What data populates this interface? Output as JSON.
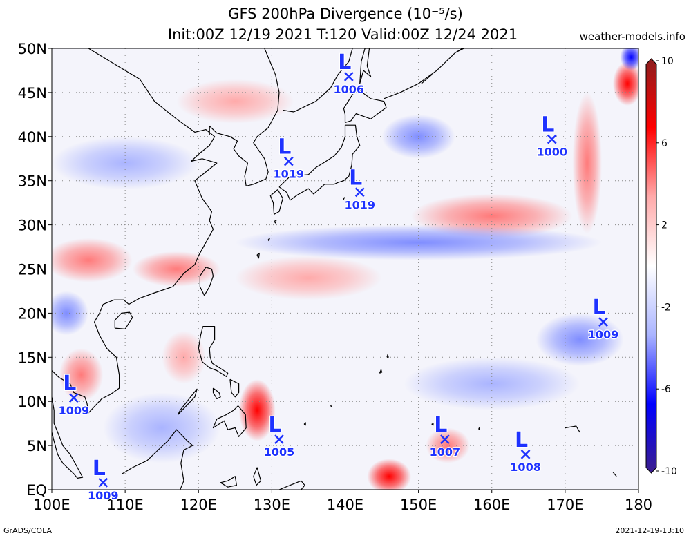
{
  "title": {
    "line1": "GFS 200hPa Divergence (10⁻⁵/s)",
    "line2": "Init:00Z 12/19 2021 T:120 Valid:00Z 12/24 2021"
  },
  "source_label": "weather-models.info",
  "footer": {
    "left": "GrADS/COLA",
    "right": "2021-12-19-13:10"
  },
  "map": {
    "lon_range": [
      100,
      180
    ],
    "lat_range": [
      0,
      50
    ],
    "lon_ticks": [
      "100E",
      "110E",
      "120E",
      "130E",
      "140E",
      "150E",
      "160E",
      "170E",
      "180"
    ],
    "lat_ticks": [
      "EQ",
      "5N",
      "10N",
      "15N",
      "20N",
      "25N",
      "30N",
      "35N",
      "40N",
      "45N",
      "50N"
    ]
  },
  "colorbar": {
    "labels": [
      "10",
      "6",
      "2",
      "-2",
      "-6",
      "-10"
    ],
    "colors": [
      "#8c1e1e",
      "#ff0000",
      "#ffaaaa",
      "#ffffff",
      "#aab4ff",
      "#0000ff",
      "#3c1e8c"
    ]
  },
  "lows": [
    {
      "label": "L",
      "pressure": "1006",
      "lon": 140.5,
      "lat": 46.8
    },
    {
      "label": "L",
      "pressure": "1019",
      "lon": 132.3,
      "lat": 37.2
    },
    {
      "label": "L",
      "pressure": "1019",
      "lon": 142.0,
      "lat": 33.7
    },
    {
      "label": "L",
      "pressure": "1000",
      "lon": 168.2,
      "lat": 39.7
    },
    {
      "label": "L",
      "pressure": "1009",
      "lon": 175.2,
      "lat": 19.0
    },
    {
      "label": "L",
      "pressure": "1009",
      "lon": 103.0,
      "lat": 10.4
    },
    {
      "label": "L",
      "pressure": "1005",
      "lon": 131.0,
      "lat": 5.7
    },
    {
      "label": "L",
      "pressure": "1007",
      "lon": 153.6,
      "lat": 5.7
    },
    {
      "label": "L",
      "pressure": "1008",
      "lon": 164.6,
      "lat": 4.0
    },
    {
      "label": "L",
      "pressure": "1009",
      "lon": 107.0,
      "lat": 0.8
    }
  ],
  "field_blobs": [
    {
      "sign": "pos",
      "lon": 128.0,
      "lat": 9.0,
      "rx": 2.5,
      "ry": 3.5,
      "strength": "strong"
    },
    {
      "sign": "pos",
      "lon": 146.0,
      "lat": 1.5,
      "rx": 3.0,
      "ry": 2.0,
      "strength": "strong"
    },
    {
      "sign": "pos",
      "lon": 154.0,
      "lat": 5.0,
      "rx": 3.0,
      "ry": 2.0,
      "strength": "medium"
    },
    {
      "sign": "pos",
      "lon": 105.0,
      "lat": 26.0,
      "rx": 6.0,
      "ry": 2.5,
      "strength": "medium"
    },
    {
      "sign": "pos",
      "lon": 117.0,
      "lat": 25.0,
      "rx": 6.0,
      "ry": 2.0,
      "strength": "medium"
    },
    {
      "sign": "pos",
      "lon": 160.0,
      "lat": 31.0,
      "rx": 11.0,
      "ry": 2.5,
      "strength": "medium"
    },
    {
      "sign": "pos",
      "lon": 173.0,
      "lat": 37.0,
      "rx": 2.0,
      "ry": 8.0,
      "strength": "medium"
    },
    {
      "sign": "pos",
      "lon": 178.5,
      "lat": 46.0,
      "rx": 2.0,
      "ry": 2.5,
      "strength": "strong"
    },
    {
      "sign": "pos",
      "lon": 104.0,
      "lat": 13.0,
      "rx": 3.0,
      "ry": 3.0,
      "strength": "medium"
    },
    {
      "sign": "pos",
      "lon": 125.0,
      "lat": 44.0,
      "rx": 8.0,
      "ry": 2.5,
      "strength": "weak"
    },
    {
      "sign": "pos",
      "lon": 118.0,
      "lat": 15.0,
      "rx": 3.0,
      "ry": 3.0,
      "strength": "weak"
    },
    {
      "sign": "pos",
      "lon": 135.0,
      "lat": 24.0,
      "rx": 10.0,
      "ry": 2.5,
      "strength": "weak"
    },
    {
      "sign": "neg",
      "lon": 150.0,
      "lat": 28.0,
      "rx": 25.0,
      "ry": 2.0,
      "strength": "medium"
    },
    {
      "sign": "neg",
      "lon": 102.0,
      "lat": 20.0,
      "rx": 3.0,
      "ry": 2.5,
      "strength": "medium"
    },
    {
      "sign": "neg",
      "lon": 110.0,
      "lat": 37.0,
      "rx": 10.0,
      "ry": 3.0,
      "strength": "weak"
    },
    {
      "sign": "neg",
      "lon": 150.0,
      "lat": 40.0,
      "rx": 5.0,
      "ry": 2.5,
      "strength": "medium"
    },
    {
      "sign": "neg",
      "lon": 172.0,
      "lat": 17.0,
      "rx": 6.0,
      "ry": 3.0,
      "strength": "medium"
    },
    {
      "sign": "neg",
      "lon": 115.0,
      "lat": 7.0,
      "rx": 8.0,
      "ry": 4.0,
      "strength": "weak"
    },
    {
      "sign": "neg",
      "lon": 160.0,
      "lat": 12.0,
      "rx": 12.0,
      "ry": 3.0,
      "strength": "weak"
    },
    {
      "sign": "neg",
      "lon": 179.0,
      "lat": 49.0,
      "rx": 1.5,
      "ry": 1.5,
      "strength": "strong"
    }
  ],
  "coastlines": [
    [
      [
        105.0,
        50.0
      ],
      [
        109.0,
        48.0
      ],
      [
        112.0,
        46.5
      ],
      [
        114.0,
        44.0
      ],
      [
        117.0,
        42.0
      ],
      [
        119.5,
        40.5
      ],
      [
        121.0,
        40.8
      ],
      [
        122.2,
        40.0
      ],
      [
        121.5,
        39.0
      ],
      [
        120.0,
        38.0
      ],
      [
        119.0,
        37.2
      ],
      [
        120.5,
        37.5
      ],
      [
        122.5,
        37.0
      ],
      [
        121.0,
        36.0
      ],
      [
        119.5,
        35.0
      ],
      [
        120.5,
        33.0
      ],
      [
        121.8,
        31.5
      ],
      [
        121.5,
        30.5
      ],
      [
        122.0,
        29.5
      ],
      [
        121.0,
        28.0
      ],
      [
        120.0,
        26.5
      ],
      [
        119.5,
        25.5
      ],
      [
        118.0,
        24.5
      ],
      [
        116.5,
        23.0
      ],
      [
        114.0,
        22.3
      ],
      [
        112.0,
        21.7
      ],
      [
        110.5,
        21.0
      ],
      [
        109.8,
        21.5
      ],
      [
        108.5,
        21.5
      ],
      [
        107.0,
        21.0
      ],
      [
        106.5,
        20.0
      ],
      [
        105.8,
        19.0
      ],
      [
        106.5,
        17.5
      ],
      [
        107.5,
        16.0
      ],
      [
        108.8,
        15.0
      ],
      [
        109.2,
        13.0
      ],
      [
        109.2,
        11.5
      ],
      [
        108.0,
        10.8
      ],
      [
        106.8,
        10.3
      ],
      [
        105.0,
        8.7
      ],
      [
        104.8,
        9.8
      ],
      [
        104.5,
        10.5
      ],
      [
        103.0,
        11.0
      ],
      [
        102.5,
        12.0
      ],
      [
        101.0,
        12.7
      ],
      [
        100.0,
        13.5
      ]
    ],
    [
      [
        100.0,
        10.5
      ],
      [
        100.3,
        9.0
      ],
      [
        100.3,
        7.5
      ],
      [
        100.8,
        6.5
      ],
      [
        101.5,
        5.0
      ],
      [
        102.5,
        4.0
      ],
      [
        103.5,
        2.5
      ],
      [
        104.2,
        1.4
      ],
      [
        103.5,
        1.3
      ],
      [
        103.0,
        1.8
      ],
      [
        101.5,
        3.0
      ],
      [
        100.8,
        4.0
      ],
      [
        100.3,
        5.5
      ],
      [
        100.0,
        6.5
      ]
    ],
    [
      [
        129.0,
        50.0
      ],
      [
        130.5,
        47.0
      ],
      [
        131.0,
        45.0
      ],
      [
        130.8,
        43.0
      ],
      [
        129.5,
        41.0
      ],
      [
        128.0,
        40.0
      ],
      [
        127.5,
        39.3
      ],
      [
        129.0,
        37.5
      ],
      [
        129.5,
        36.0
      ],
      [
        129.2,
        35.2
      ],
      [
        127.5,
        34.6
      ],
      [
        126.5,
        34.4
      ],
      [
        126.3,
        35.5
      ],
      [
        126.7,
        37.0
      ],
      [
        125.5,
        37.8
      ],
      [
        124.8,
        38.6
      ],
      [
        125.3,
        39.5
      ],
      [
        124.3,
        40.0
      ],
      [
        122.5,
        40.4
      ],
      [
        121.5,
        41.2
      ],
      [
        121.5,
        40.2
      ]
    ],
    [
      [
        130.8,
        34.0
      ],
      [
        131.5,
        33.0
      ],
      [
        131.0,
        31.5
      ],
      [
        130.3,
        31.2
      ],
      [
        130.2,
        32.5
      ],
      [
        129.8,
        33.3
      ],
      [
        130.8,
        34.0
      ]
    ],
    [
      [
        131.0,
        34.3
      ],
      [
        132.5,
        35.5
      ],
      [
        135.0,
        35.7
      ],
      [
        136.0,
        36.5
      ],
      [
        137.0,
        37.0
      ],
      [
        138.5,
        37.8
      ],
      [
        139.5,
        38.8
      ],
      [
        140.0,
        40.0
      ],
      [
        140.0,
        41.3
      ],
      [
        141.4,
        41.3
      ],
      [
        141.6,
        40.0
      ],
      [
        142.0,
        39.0
      ],
      [
        141.0,
        38.0
      ],
      [
        140.9,
        36.8
      ],
      [
        140.5,
        35.5
      ],
      [
        139.8,
        35.0
      ],
      [
        139.0,
        34.8
      ],
      [
        138.5,
        34.6
      ],
      [
        137.2,
        34.6
      ],
      [
        136.8,
        34.3
      ],
      [
        135.7,
        33.5
      ],
      [
        135.0,
        34.1
      ],
      [
        133.5,
        33.4
      ],
      [
        132.5,
        32.8
      ],
      [
        132.0,
        33.7
      ],
      [
        131.0,
        34.3
      ]
    ],
    [
      [
        140.0,
        41.6
      ],
      [
        140.0,
        42.5
      ],
      [
        139.8,
        43.2
      ],
      [
        141.5,
        45.4
      ],
      [
        142.0,
        45.2
      ],
      [
        143.5,
        44.3
      ],
      [
        145.3,
        44.0
      ],
      [
        145.6,
        43.3
      ],
      [
        143.5,
        42.0
      ],
      [
        141.5,
        42.6
      ],
      [
        140.8,
        41.8
      ],
      [
        140.0,
        41.6
      ]
    ],
    [
      [
        142.0,
        46.0
      ],
      [
        142.2,
        48.5
      ],
      [
        142.7,
        50.0
      ],
      [
        143.3,
        50.0
      ],
      [
        143.0,
        48.0
      ],
      [
        143.5,
        46.8
      ],
      [
        142.5,
        47.5
      ],
      [
        142.0,
        46.0
      ]
    ],
    [
      [
        141.0,
        50.0
      ],
      [
        140.5,
        48.5
      ],
      [
        139.0,
        47.0
      ],
      [
        138.0,
        45.5
      ],
      [
        136.0,
        44.0
      ],
      [
        133.0,
        42.8
      ],
      [
        131.5,
        43.0
      ]
    ],
    [
      [
        145.3,
        44.3
      ],
      [
        147.5,
        45.0
      ],
      [
        150.0,
        46.0
      ],
      [
        152.5,
        47.5
      ],
      [
        155.0,
        49.5
      ],
      [
        156.0,
        50.0
      ]
    ],
    [
      [
        120.8,
        22.0
      ],
      [
        120.2,
        23.0
      ],
      [
        120.2,
        24.2
      ],
      [
        121.0,
        25.2
      ],
      [
        121.8,
        25.0
      ],
      [
        122.0,
        24.2
      ],
      [
        121.5,
        23.0
      ],
      [
        120.8,
        22.0
      ]
    ],
    [
      [
        108.6,
        18.3
      ],
      [
        110.0,
        18.2
      ],
      [
        111.0,
        19.5
      ],
      [
        110.6,
        20.1
      ],
      [
        109.5,
        20.0
      ],
      [
        108.6,
        19.2
      ],
      [
        108.6,
        18.3
      ]
    ],
    [
      [
        120.6,
        18.5
      ],
      [
        122.2,
        18.5
      ],
      [
        122.2,
        17.0
      ],
      [
        121.5,
        16.0
      ],
      [
        121.6,
        15.0
      ],
      [
        121.9,
        14.3
      ],
      [
        122.5,
        14.0
      ],
      [
        124.0,
        13.2
      ],
      [
        123.8,
        12.8
      ],
      [
        122.5,
        13.5
      ],
      [
        121.5,
        13.8
      ],
      [
        120.5,
        14.5
      ],
      [
        120.0,
        16.0
      ],
      [
        120.3,
        17.5
      ],
      [
        120.6,
        18.5
      ]
    ],
    [
      [
        125.4,
        9.5
      ],
      [
        126.4,
        8.5
      ],
      [
        126.5,
        7.0
      ],
      [
        125.5,
        6.0
      ],
      [
        125.0,
        7.0
      ],
      [
        124.0,
        6.8
      ],
      [
        123.5,
        7.8
      ],
      [
        122.0,
        7.0
      ],
      [
        122.5,
        8.0
      ],
      [
        123.8,
        8.5
      ],
      [
        124.8,
        9.0
      ],
      [
        125.4,
        9.5
      ]
    ],
    [
      [
        122.0,
        11.5
      ],
      [
        122.8,
        11.0
      ],
      [
        123.0,
        10.5
      ],
      [
        122.5,
        10.3
      ],
      [
        122.0,
        11.0
      ],
      [
        122.0,
        11.5
      ]
    ],
    [
      [
        124.3,
        12.5
      ],
      [
        125.5,
        12.0
      ],
      [
        125.5,
        11.0
      ],
      [
        125.0,
        10.5
      ],
      [
        124.5,
        11.0
      ],
      [
        124.3,
        12.5
      ]
    ],
    [
      [
        117.2,
        8.5
      ],
      [
        119.5,
        10.5
      ],
      [
        119.8,
        11.4
      ],
      [
        119.3,
        10.9
      ],
      [
        117.5,
        9.0
      ],
      [
        117.2,
        8.5
      ]
    ],
    [
      [
        109.6,
        1.8
      ],
      [
        111.0,
        2.5
      ],
      [
        113.0,
        3.3
      ],
      [
        114.5,
        4.5
      ],
      [
        115.8,
        5.5
      ],
      [
        117.0,
        6.8
      ],
      [
        118.5,
        5.5
      ],
      [
        119.2,
        5.0
      ],
      [
        118.0,
        4.5
      ],
      [
        117.6,
        3.0
      ],
      [
        118.0,
        1.0
      ],
      [
        117.5,
        0.0
      ]
    ],
    [
      [
        124.0,
        1.0
      ],
      [
        125.0,
        1.5
      ],
      [
        125.2,
        0.5
      ],
      [
        124.0,
        0.3
      ],
      [
        123.0,
        0.8
      ],
      [
        124.0,
        1.0
      ]
    ],
    [
      [
        127.5,
        1.5
      ],
      [
        128.0,
        2.5
      ],
      [
        128.5,
        1.0
      ],
      [
        127.9,
        0.5
      ],
      [
        127.5,
        1.5
      ]
    ],
    [
      [
        131.0,
        0.0
      ],
      [
        132.5,
        0.5
      ],
      [
        134.0,
        1.0
      ],
      [
        134.5,
        0.5
      ],
      [
        134.0,
        0.0
      ]
    ],
    [
      [
        144.7,
        13.2
      ],
      [
        144.9,
        13.6
      ],
      [
        145.0,
        13.3
      ],
      [
        144.7,
        13.2
      ]
    ],
    [
      [
        145.7,
        15.0
      ],
      [
        145.8,
        15.3
      ],
      [
        145.9,
        15.0
      ],
      [
        145.7,
        15.0
      ]
    ],
    [
      [
        170.0,
        7.0
      ],
      [
        171.5,
        7.2
      ],
      [
        172.0,
        6.5
      ]
    ],
    [
      [
        138.0,
        9.5
      ],
      [
        138.2,
        9.6
      ],
      [
        138.2,
        9.4
      ],
      [
        138.0,
        9.5
      ]
    ],
    [
      [
        151.8,
        7.4
      ],
      [
        152.0,
        7.5
      ],
      [
        152.0,
        7.3
      ],
      [
        151.8,
        7.4
      ]
    ],
    [
      [
        158.2,
        6.9
      ],
      [
        158.3,
        7.0
      ],
      [
        158.3,
        6.8
      ],
      [
        158.2,
        6.9
      ]
    ],
    [
      [
        134.4,
        7.4
      ],
      [
        134.6,
        7.6
      ],
      [
        134.6,
        7.3
      ],
      [
        134.4,
        7.4
      ]
    ],
    [
      [
        128.2,
        26.2
      ],
      [
        128.0,
        26.6
      ],
      [
        128.3,
        26.8
      ],
      [
        128.2,
        26.2
      ]
    ],
    [
      [
        129.5,
        28.3
      ],
      [
        129.7,
        28.5
      ],
      [
        129.6,
        28.2
      ],
      [
        129.5,
        28.3
      ]
    ],
    [
      [
        139.8,
        33.0
      ],
      [
        139.9,
        33.1
      ],
      [
        139.8,
        32.9
      ],
      [
        139.8,
        33.0
      ]
    ],
    [
      [
        130.3,
        30.4
      ],
      [
        130.6,
        30.5
      ],
      [
        130.5,
        30.2
      ],
      [
        130.3,
        30.4
      ]
    ],
    [
      [
        155.0,
        49.5
      ],
      [
        156.2,
        50.0
      ]
    ],
    [
      [
        150.4,
        46.0
      ],
      [
        151.8,
        47.0
      ]
    ],
    [
      [
        177.0,
        1.5
      ],
      [
        176.5,
        2.0
      ]
    ]
  ]
}
